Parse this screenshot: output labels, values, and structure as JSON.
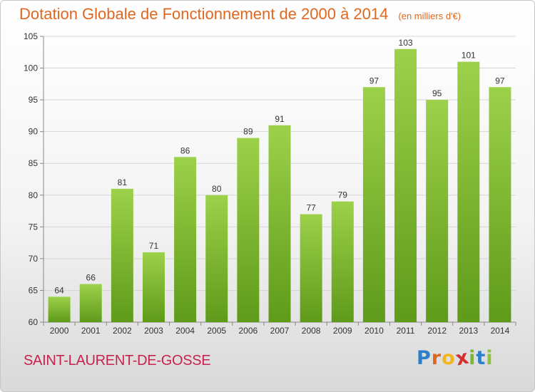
{
  "chart_data": {
    "type": "bar",
    "title": "Dotation Globale de Fonctionnement de 2000 à 2014",
    "subtitle": "(en milliers d'€)",
    "categories": [
      "2000",
      "2001",
      "2002",
      "2003",
      "2004",
      "2005",
      "2006",
      "2007",
      "2008",
      "2009",
      "2010",
      "2011",
      "2012",
      "2013",
      "2014"
    ],
    "values": [
      64,
      66,
      81,
      71,
      86,
      80,
      89,
      91,
      77,
      79,
      97,
      103,
      95,
      101,
      97
    ],
    "ylim": [
      60,
      105
    ],
    "yticks": [
      60,
      65,
      70,
      75,
      80,
      85,
      90,
      95,
      100,
      105
    ],
    "xlabel": "",
    "ylabel": "",
    "grid": true,
    "bar_color_top": "#9cd14a",
    "bar_color_bottom": "#5f9a1a",
    "title_color": "#e0671f"
  },
  "footer": {
    "commune": "SAINT-LAURENT-DE-GOSSE",
    "commune_color": "#c8224e",
    "brand_letters": [
      {
        "ch": "P",
        "color": "#2c7fc9"
      },
      {
        "ch": "r",
        "color": "#e0671f"
      },
      {
        "ch": "o",
        "color": "#f2b51d"
      },
      {
        "ch": "x",
        "color": "#d62d2d"
      },
      {
        "ch": "i",
        "color": "#7cb82f"
      },
      {
        "ch": "t",
        "color": "#2c7fc9"
      },
      {
        "ch": "i",
        "color": "#8bc43f"
      }
    ]
  }
}
